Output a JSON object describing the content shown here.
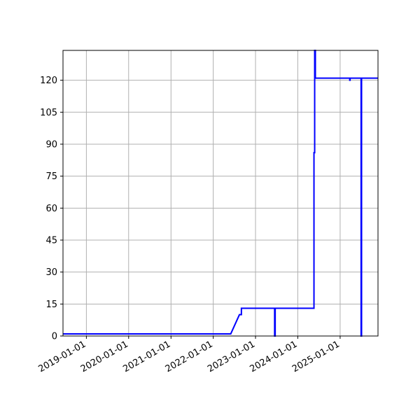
{
  "chart_data": {
    "type": "line",
    "title": "",
    "xlabel": "",
    "ylabel": "",
    "x_axis_type": "date",
    "xlim": [
      "2018-06-13",
      "2025-11-24"
    ],
    "ylim": [
      0,
      134
    ],
    "grid": true,
    "legend": "none",
    "x_ticks": [
      "2019-01-01",
      "2020-01-01",
      "2021-01-01",
      "2022-01-01",
      "2023-01-01",
      "2024-01-01",
      "2025-01-01"
    ],
    "y_ticks": [
      0,
      15,
      30,
      45,
      60,
      75,
      90,
      105,
      120
    ],
    "series": [
      {
        "color": "#0000ff",
        "points": [
          [
            "2018-06-13",
            1
          ],
          [
            "2022-06-01",
            1
          ],
          [
            "2022-08-15",
            10
          ],
          [
            "2022-09-01",
            10
          ],
          [
            "2022-09-01",
            13
          ],
          [
            "2023-06-15",
            13
          ],
          [
            "2023-06-15",
            0
          ],
          [
            "2023-06-20",
            0
          ],
          [
            "2023-06-20",
            13
          ],
          [
            "2024-05-20",
            13
          ],
          [
            "2024-05-20",
            86
          ],
          [
            "2024-05-26",
            86
          ],
          [
            "2024-05-26",
            134
          ],
          [
            "2024-06-01",
            134
          ],
          [
            "2024-06-01",
            121
          ],
          [
            "2025-03-25",
            121
          ],
          [
            "2025-03-25",
            120
          ],
          [
            "2025-03-28",
            120
          ],
          [
            "2025-03-28",
            121
          ],
          [
            "2025-07-01",
            121
          ],
          [
            "2025-07-01",
            0
          ],
          [
            "2025-07-05",
            0
          ],
          [
            "2025-07-05",
            121
          ],
          [
            "2025-11-24",
            121
          ]
        ]
      }
    ]
  }
}
